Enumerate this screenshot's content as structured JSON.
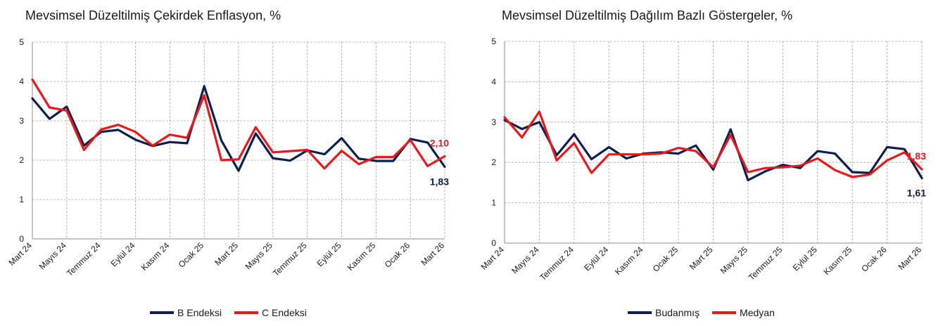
{
  "colors": {
    "navy": "#0d1f4e",
    "red": "#e41a1c",
    "grid": "#a6a6a6",
    "axis": "#8c8c8c"
  },
  "chart_data": [
    {
      "type": "line",
      "title": "Mevsimsel Düzeltilmiş Çekirdek Enflasyon, %",
      "xlabel": "",
      "ylabel": "",
      "ylim": [
        0,
        5
      ],
      "yticks": [
        "0",
        "1",
        "2",
        "3",
        "4",
        "5"
      ],
      "grid": true,
      "legend_position": "bottom",
      "x": [
        "Mart 24",
        "Nisan 24",
        "Mayıs 24",
        "Haziran 24",
        "Temmuz 24",
        "Ağustos 24",
        "Eylül 24",
        "Ekim 24",
        "Kasım 24",
        "Aralık 24",
        "Ocak 25",
        "Şubat 25",
        "Mart 25",
        "Nisan 25",
        "Mayıs 25",
        "Haziran 25",
        "Temmuz 25",
        "Ağustos 25",
        "Eylül 25",
        "Ekim 25",
        "Kasım 25",
        "Aralık 25",
        "Ocak 26",
        "Şubat 26",
        "Mart 26"
      ],
      "xtick_labels": [
        "Mart 24",
        "Mayıs 24",
        "Temmuz 24",
        "Eylül 24",
        "Kasım 24",
        "Ocak 25",
        "Mart 25",
        "Mayıs 25",
        "Temmuz 25",
        "Eylül 25",
        "Kasım 25",
        "Ocak 26",
        "Mart 26"
      ],
      "series": [
        {
          "name": "B Endeksi",
          "color": "#0d1f4e",
          "values": [
            3.57,
            3.05,
            3.36,
            2.37,
            2.72,
            2.77,
            2.52,
            2.36,
            2.46,
            2.43,
            3.88,
            2.5,
            1.73,
            2.68,
            2.05,
            1.99,
            2.25,
            2.15,
            2.56,
            2.04,
            1.98,
            1.98,
            2.54,
            2.45,
            1.83
          ]
        },
        {
          "name": "C Endeksi",
          "color": "#e41a1c",
          "values": [
            4.05,
            3.34,
            3.26,
            2.26,
            2.78,
            2.9,
            2.72,
            2.37,
            2.65,
            2.57,
            3.65,
            2.0,
            2.02,
            2.84,
            2.2,
            2.23,
            2.26,
            1.79,
            2.24,
            1.9,
            2.08,
            2.08,
            2.51,
            1.85,
            2.1
          ]
        }
      ],
      "end_labels": [
        {
          "series": "C Endeksi",
          "text": "2,10",
          "color": "#e41a1c"
        },
        {
          "series": "B Endeksi",
          "text": "1,83",
          "color": "#0d1f4e"
        }
      ]
    },
    {
      "type": "line",
      "title": "Mevsimsel Düzeltilmiş Dağılım Bazlı Göstergeler, %",
      "xlabel": "",
      "ylabel": "",
      "ylim": [
        0,
        5
      ],
      "yticks": [
        "0",
        "1",
        "2",
        "3",
        "4",
        "5"
      ],
      "grid": true,
      "legend_position": "bottom",
      "x": [
        "Mart 24",
        "Nisan 24",
        "Mayıs 24",
        "Haziran 24",
        "Temmuz 24",
        "Ağustos 24",
        "Eylül 24",
        "Ekim 24",
        "Kasım 24",
        "Aralık 24",
        "Ocak 25",
        "Şubat 25",
        "Mart 25",
        "Nisan 25",
        "Mayıs 25",
        "Haziran 25",
        "Temmuz 25",
        "Ağustos 25",
        "Eylül 25",
        "Ekim 25",
        "Kasım 25",
        "Aralık 25",
        "Ocak 26",
        "Şubat 26",
        "Mart 26"
      ],
      "xtick_labels": [
        "Mart 24",
        "Mayıs 24",
        "Temmuz 24",
        "Eylül 24",
        "Kasım 24",
        "Ocak 25",
        "Mart 25",
        "Mayıs 25",
        "Temmuz 25",
        "Eylül 25",
        "Kasım 25",
        "Ocak 26",
        "Mart 26"
      ],
      "series": [
        {
          "name": "Budanmış",
          "color": "#0d1f4e",
          "values": [
            3.05,
            2.83,
            3.0,
            2.18,
            2.7,
            2.08,
            2.38,
            2.1,
            2.22,
            2.25,
            2.22,
            2.42,
            1.82,
            2.82,
            1.56,
            1.78,
            1.94,
            1.86,
            2.28,
            2.22,
            1.76,
            1.74,
            2.38,
            2.33,
            1.61
          ]
        },
        {
          "name": "Medyan",
          "color": "#e41a1c",
          "values": [
            3.12,
            2.62,
            3.26,
            2.05,
            2.48,
            1.74,
            2.2,
            2.2,
            2.2,
            2.22,
            2.36,
            2.28,
            1.88,
            2.68,
            1.76,
            1.86,
            1.88,
            1.92,
            2.1,
            1.81,
            1.64,
            1.7,
            2.05,
            2.25,
            1.83
          ]
        }
      ],
      "end_labels": [
        {
          "series": "Medyan",
          "text": "1,83",
          "color": "#e41a1c"
        },
        {
          "series": "Budanmış",
          "text": "1,61",
          "color": "#0d1f4e"
        }
      ]
    }
  ]
}
